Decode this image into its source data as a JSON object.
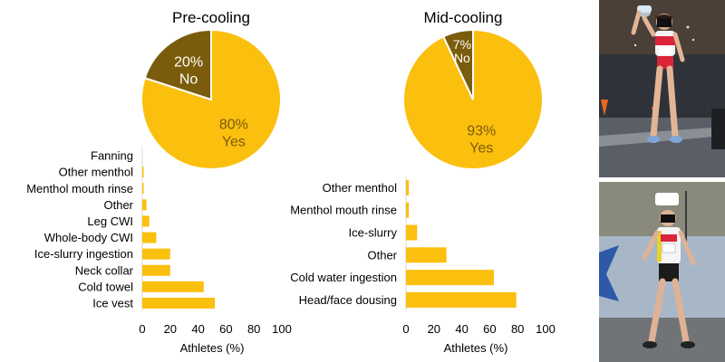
{
  "chart_data": [
    {
      "type": "pie",
      "title": "Pre-cooling",
      "slices": [
        {
          "label": "Yes",
          "value": 80,
          "value_label": "80%",
          "color": "#FBBF0E"
        },
        {
          "label": "No",
          "value": 20,
          "value_label": "20%",
          "color": "#7A5C0C"
        }
      ]
    },
    {
      "type": "pie",
      "title": "Mid-cooling",
      "slices": [
        {
          "label": "Yes",
          "value": 93,
          "value_label": "93%",
          "color": "#FBBF0E"
        },
        {
          "label": "No",
          "value": 7,
          "value_label": "7%",
          "color": "#7A5C0C"
        }
      ]
    },
    {
      "type": "bar",
      "orientation": "horizontal",
      "categories": [
        "Fanning",
        "Other menthol",
        "Menthol mouth rinse",
        "Other",
        "Leg CWI",
        "Whole-body CWI",
        "Ice-slurry ingestion",
        "Neck collar",
        "Cold towel",
        "Ice vest"
      ],
      "values": [
        0,
        1,
        1,
        3,
        5,
        10,
        20,
        20,
        44,
        52
      ],
      "xlabel": "Athletes (%)",
      "xlim": [
        0,
        100
      ],
      "xticks": [
        0,
        20,
        40,
        60,
        80,
        100
      ],
      "color": "#FBBF0E"
    },
    {
      "type": "bar",
      "orientation": "horizontal",
      "categories": [
        "Other menthol",
        "Menthol mouth rinse",
        "Ice-slurry",
        "Other",
        "Cold water ingestion",
        "Head/face dousing"
      ],
      "values": [
        2,
        2,
        8,
        29,
        63,
        79
      ],
      "xlabel": "Athletes (%)",
      "xlim": [
        0,
        100
      ],
      "xticks": [
        0,
        20,
        40,
        60,
        80,
        100
      ],
      "color": "#FBBF0E"
    }
  ],
  "photos": [
    {
      "subject": "race-walker-pouring-water"
    },
    {
      "subject": "race-walker-wearing-cooling-hat"
    }
  ]
}
